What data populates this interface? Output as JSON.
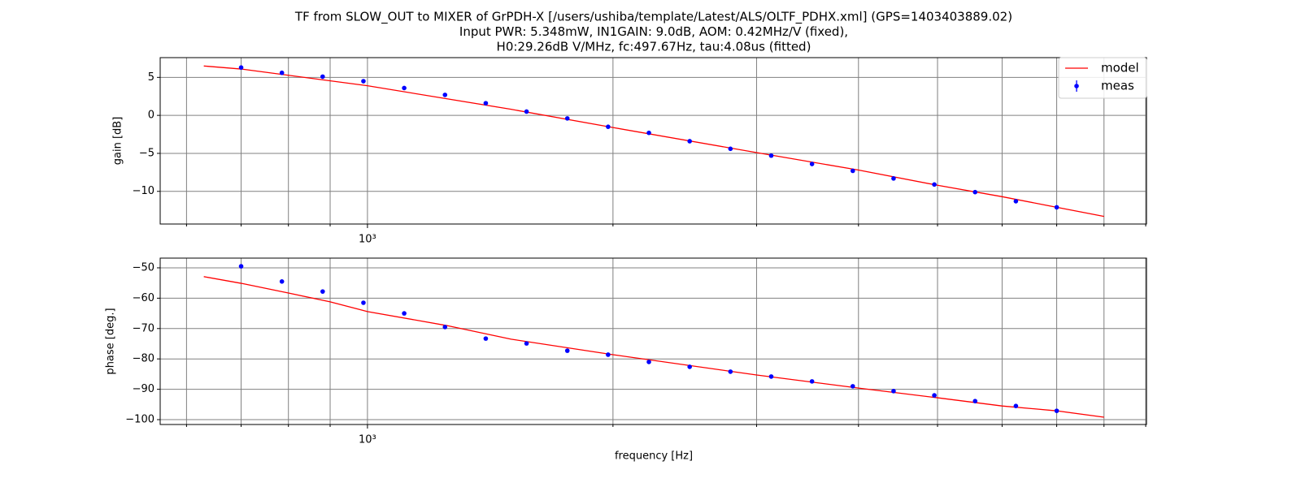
{
  "chart_data": [
    {
      "type": "line",
      "title": [
        "TF from SLOW_OUT to MIXER of GrPDH-X [/users/ushiba/template/Latest/ALS/OLTF_PDHX.xml] (GPS=1403403889.02)",
        "Input PWR: 5.348mW,   IN1GAIN: 9.0dB,   AOM: 0.42MHz/V (fixed),",
        "H0:29.26dB V/MHz,   fc:497.67Hz,   tau:4.08us (fitted)"
      ],
      "ylabel": "gain [dB]",
      "xscale": "log",
      "xlim": [
        557,
        9020
      ],
      "xticks": [
        {
          "value": 1000,
          "label": "10³"
        }
      ],
      "xminorticks": [
        600,
        700,
        800,
        900,
        2000,
        3000,
        4000,
        5000,
        6000,
        7000,
        8000,
        9000
      ],
      "ylim": [
        -14.3,
        7.6
      ],
      "yticks": [
        {
          "value": -10,
          "label": "−10"
        },
        {
          "value": -5,
          "label": "−5"
        },
        0,
        5
      ],
      "grid": true,
      "legend": "upper right",
      "series": [
        {
          "name": "model",
          "color": "#ff0000",
          "style": "line",
          "x": [
            630,
            700,
            1000,
            1500,
            2000,
            3000,
            4000,
            5000,
            6000,
            7000,
            8000
          ],
          "values": [
            6.5,
            6.1,
            3.9,
            0.8,
            -1.6,
            -4.9,
            -7.2,
            -9.2,
            -10.7,
            -12.1,
            -13.3
          ]
        },
        {
          "name": "meas",
          "color": "#0000ff",
          "style": "marker",
          "x": [
            700,
            785.4,
            881.2,
            988.7,
            1109.3,
            1244.7,
            1396.6,
            1567.0,
            1758.2,
            1972.7,
            2213.5,
            2483.6,
            2786.6,
            3126.6,
            3508.1,
            3936.1,
            4416.4,
            4955.3,
            5559.8,
            6238.2,
            7000
          ],
          "values": [
            6.3,
            5.6,
            5.1,
            4.5,
            3.6,
            2.7,
            1.6,
            0.5,
            -0.4,
            -1.5,
            -2.3,
            -3.4,
            -4.4,
            -5.3,
            -6.4,
            -7.3,
            -8.3,
            -9.1,
            -10.1,
            -11.3,
            -12.1
          ]
        }
      ]
    },
    {
      "type": "line",
      "ylabel": "phase [deg.]",
      "xlabel": "frequency [Hz]",
      "xscale": "log",
      "xlim": [
        557,
        9020
      ],
      "xticks": [
        {
          "value": 1000,
          "label": "10³"
        }
      ],
      "xminorticks": [
        600,
        700,
        800,
        900,
        2000,
        3000,
        4000,
        5000,
        6000,
        7000,
        8000,
        9000
      ],
      "ylim": [
        -101.6,
        -46.8
      ],
      "yticks": [
        {
          "value": -100,
          "label": "−100"
        },
        {
          "value": -90,
          "label": "−90"
        },
        {
          "value": -80,
          "label": "−80"
        },
        {
          "value": -70,
          "label": "−70"
        },
        {
          "value": -60,
          "label": "−60"
        },
        {
          "value": -50,
          "label": "−50"
        }
      ],
      "grid": true,
      "series": [
        {
          "color": "#ff0000",
          "style": "line",
          "x": [
            630,
            700,
            800,
            900,
            1000,
            1250,
            1500,
            2000,
            3000,
            4000,
            5000,
            6000,
            7000,
            8000
          ],
          "values": [
            -52.9,
            -55.1,
            -58.3,
            -61.2,
            -64.4,
            -69.0,
            -73.5,
            -78.6,
            -85.3,
            -89.6,
            -92.8,
            -95.5,
            -97.1,
            -99.2
          ]
        },
        {
          "color": "#0000ff",
          "style": "marker",
          "x": [
            700,
            785.4,
            881.2,
            988.7,
            1109.3,
            1244.7,
            1396.6,
            1567.0,
            1758.2,
            1972.7,
            2213.5,
            2483.6,
            2786.6,
            3126.6,
            3508.1,
            3936.1,
            4416.4,
            4955.3,
            5559.8,
            6238.2,
            7000
          ],
          "values": [
            -49.5,
            -54.5,
            -57.8,
            -61.5,
            -65.0,
            -69.5,
            -73.3,
            -74.9,
            -77.3,
            -78.6,
            -81.0,
            -82.6,
            -84.2,
            -85.8,
            -87.4,
            -89.0,
            -90.6,
            -92.0,
            -93.9,
            -95.5,
            -97.1
          ]
        }
      ]
    }
  ]
}
